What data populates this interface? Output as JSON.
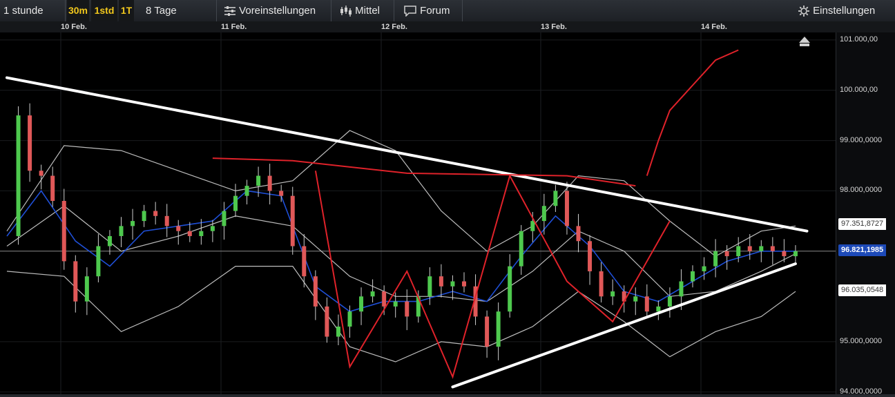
{
  "toolbar": {
    "interval": "1 stunde",
    "quick": [
      "30m",
      "1std",
      "1T"
    ],
    "range": "8 Tage",
    "presets": "Voreinstellungen",
    "indicator": "Mittel",
    "forum": "Forum",
    "settings": "Einstellungen"
  },
  "icons": {
    "presets": "sliders-icon",
    "indicator": "candlestick-icon",
    "forum": "speech-bubble-icon",
    "settings": "gear-icon",
    "scroll": "home-arrow-icon"
  },
  "colors": {
    "up": "#4ec94e",
    "down": "#e05858",
    "bollinger": "#bdbdbd",
    "moving_average": "#1f4fd6",
    "red_lines": "#e0222a",
    "trendlines": "#ffffff",
    "current_price": "#1d4ab8"
  },
  "chart_data": {
    "type": "candlestick",
    "x_tick_labels": [
      "10 Feb.",
      "11 Feb.",
      "12 Feb.",
      "13 Feb.",
      "14 Feb."
    ],
    "y_tick_labels": [
      "101.000,00",
      "100.000,00",
      "99.000,0000",
      "98.000,0000",
      "95.000,0000",
      "94.000,0000"
    ],
    "ylim": [
      93900,
      101150
    ],
    "price_labels": [
      "97.351,8727",
      "96.821,1985",
      "96.035,0548"
    ],
    "close_path": [
      [
        0,
        97100
      ],
      [
        1,
        99500
      ],
      [
        2,
        98400
      ],
      [
        3,
        98300
      ],
      [
        4,
        97800
      ],
      [
        5,
        96600
      ],
      [
        6,
        95800
      ],
      [
        7,
        96300
      ],
      [
        8,
        96900
      ],
      [
        9,
        97100
      ],
      [
        10,
        97300
      ],
      [
        11,
        97400
      ],
      [
        12,
        97600
      ],
      [
        13,
        97500
      ],
      [
        14,
        97300
      ],
      [
        15,
        97200
      ],
      [
        16,
        97100
      ],
      [
        17,
        97200
      ],
      [
        18,
        97300
      ],
      [
        19,
        97600
      ],
      [
        20,
        97900
      ],
      [
        21,
        98100
      ],
      [
        22,
        98300
      ],
      [
        23,
        98000
      ],
      [
        24,
        97900
      ],
      [
        25,
        96900
      ],
      [
        26,
        96300
      ],
      [
        27,
        95700
      ],
      [
        28,
        95100
      ],
      [
        29,
        95300
      ],
      [
        30,
        95600
      ],
      [
        31,
        95900
      ],
      [
        32,
        96000
      ],
      [
        33,
        95700
      ],
      [
        34,
        95800
      ],
      [
        35,
        95500
      ],
      [
        36,
        95900
      ],
      [
        37,
        96300
      ],
      [
        38,
        96100
      ],
      [
        39,
        96200
      ],
      [
        40,
        96100
      ],
      [
        41,
        95500
      ],
      [
        42,
        94900
      ],
      [
        43,
        95600
      ],
      [
        44,
        96500
      ],
      [
        45,
        97200
      ],
      [
        46,
        97400
      ],
      [
        47,
        97700
      ],
      [
        48,
        98000
      ],
      [
        49,
        97300
      ],
      [
        50,
        97000
      ],
      [
        51,
        96400
      ],
      [
        52,
        95900
      ],
      [
        53,
        96000
      ],
      [
        54,
        95800
      ],
      [
        55,
        95900
      ],
      [
        56,
        95600
      ],
      [
        57,
        95700
      ],
      [
        58,
        95900
      ],
      [
        59,
        96200
      ],
      [
        60,
        96400
      ],
      [
        61,
        96500
      ],
      [
        62,
        96800
      ],
      [
        63,
        96700
      ],
      [
        64,
        96900
      ],
      [
        65,
        96800
      ],
      [
        66,
        96900
      ],
      [
        67,
        96800
      ],
      [
        68,
        96700
      ],
      [
        69,
        96800
      ]
    ],
    "bollinger_upper": [
      [
        0,
        97200
      ],
      [
        5,
        98900
      ],
      [
        10,
        98800
      ],
      [
        15,
        98400
      ],
      [
        20,
        98000
      ],
      [
        25,
        98200
      ],
      [
        30,
        99200
      ],
      [
        34,
        98800
      ],
      [
        38,
        97600
      ],
      [
        42,
        96800
      ],
      [
        46,
        97300
      ],
      [
        50,
        98300
      ],
      [
        54,
        98200
      ],
      [
        58,
        97400
      ],
      [
        62,
        96700
      ],
      [
        66,
        97200
      ],
      [
        69,
        97300
      ]
    ],
    "bollinger_middle": [
      [
        0,
        96900
      ],
      [
        5,
        97700
      ],
      [
        10,
        96800
      ],
      [
        15,
        97100
      ],
      [
        20,
        97500
      ],
      [
        25,
        97300
      ],
      [
        30,
        96300
      ],
      [
        34,
        95900
      ],
      [
        38,
        95900
      ],
      [
        42,
        95800
      ],
      [
        46,
        96400
      ],
      [
        50,
        97200
      ],
      [
        54,
        96800
      ],
      [
        58,
        95900
      ],
      [
        62,
        96000
      ],
      [
        66,
        96400
      ],
      [
        69,
        96750
      ]
    ],
    "bollinger_lower": [
      [
        0,
        96400
      ],
      [
        5,
        96300
      ],
      [
        10,
        95200
      ],
      [
        15,
        95700
      ],
      [
        20,
        96500
      ],
      [
        25,
        96500
      ],
      [
        30,
        94900
      ],
      [
        34,
        94600
      ],
      [
        38,
        95000
      ],
      [
        42,
        94900
      ],
      [
        46,
        95300
      ],
      [
        50,
        96000
      ],
      [
        54,
        95400
      ],
      [
        58,
        94700
      ],
      [
        62,
        95200
      ],
      [
        66,
        95500
      ],
      [
        69,
        96000
      ]
    ],
    "moving_average": [
      [
        0,
        97100
      ],
      [
        3,
        98000
      ],
      [
        6,
        97000
      ],
      [
        9,
        96500
      ],
      [
        12,
        97200
      ],
      [
        15,
        97300
      ],
      [
        18,
        97400
      ],
      [
        21,
        98000
      ],
      [
        24,
        97900
      ],
      [
        27,
        96100
      ],
      [
        30,
        95600
      ],
      [
        33,
        95800
      ],
      [
        36,
        95800
      ],
      [
        39,
        96000
      ],
      [
        42,
        95800
      ],
      [
        45,
        96700
      ],
      [
        48,
        97500
      ],
      [
        51,
        96900
      ],
      [
        54,
        96000
      ],
      [
        57,
        95800
      ],
      [
        60,
        96200
      ],
      [
        63,
        96600
      ],
      [
        66,
        96800
      ],
      [
        69,
        96800
      ]
    ],
    "drawn_trendlines": [
      {
        "from": [
          0,
          100250
        ],
        "to": [
          70,
          97200
        ]
      },
      {
        "from": [
          39,
          94100
        ],
        "to": [
          69,
          96550
        ]
      }
    ],
    "drawn_red_zigzag": [
      [
        27,
        98400
      ],
      [
        30,
        94500
      ],
      [
        35,
        96400
      ],
      [
        39,
        94300
      ],
      [
        44,
        98300
      ],
      [
        49,
        96200
      ],
      [
        53,
        95400
      ],
      [
        58,
        97400
      ]
    ],
    "drawn_red_curve": [
      [
        18,
        98650
      ],
      [
        25,
        98600
      ],
      [
        35,
        98350
      ],
      [
        49,
        98300
      ],
      [
        55,
        98100
      ]
    ],
    "drawn_red_arrow": [
      [
        56,
        98300
      ],
      [
        57,
        99000
      ],
      [
        58,
        99600
      ],
      [
        60,
        100100
      ],
      [
        62,
        100600
      ],
      [
        64,
        100800
      ]
    ]
  }
}
